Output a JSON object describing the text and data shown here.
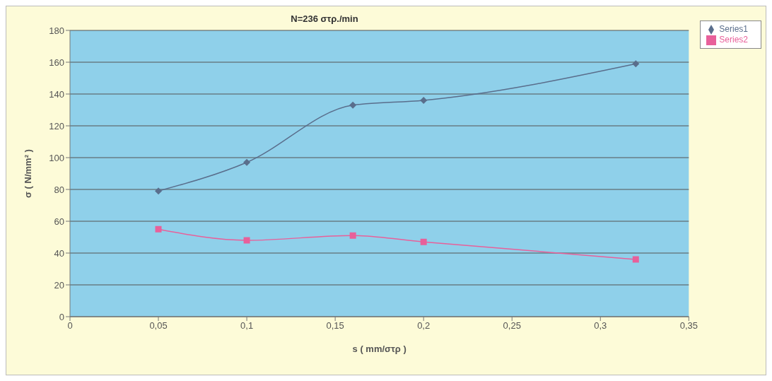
{
  "chart_data": {
    "type": "line",
    "title": "N=236 στρ./min",
    "xlabel": "s ( mm/στρ )",
    "ylabel": "σ ( N/mm² )",
    "xlim": [
      0,
      0.35
    ],
    "xticks": [
      0,
      {
        "value": 0.05,
        "label": "0,05"
      },
      {
        "value": 0.1,
        "label": "0,1"
      },
      {
        "value": 0.15,
        "label": "0,15"
      },
      {
        "value": 0.2,
        "label": "0,2"
      },
      {
        "value": 0.25,
        "label": "0,25"
      },
      {
        "value": 0.3,
        "label": "0,3"
      },
      {
        "value": 0.35,
        "label": "0,35"
      }
    ],
    "ylim": [
      0,
      180
    ],
    "yticks": [
      0,
      20,
      40,
      60,
      80,
      100,
      120,
      140,
      160,
      180
    ],
    "grid": "y",
    "legend": "top right",
    "x": [
      0.05,
      0.1,
      0.16,
      0.2,
      0.32
    ],
    "series": [
      {
        "name": "Series1",
        "color": "#5a6e8c",
        "marker": "diamond",
        "values": [
          79,
          97,
          133,
          136,
          159
        ]
      },
      {
        "name": "Series2",
        "color": "#e8609a",
        "marker": "square",
        "values": [
          55,
          48,
          51,
          47,
          36
        ]
      }
    ]
  }
}
